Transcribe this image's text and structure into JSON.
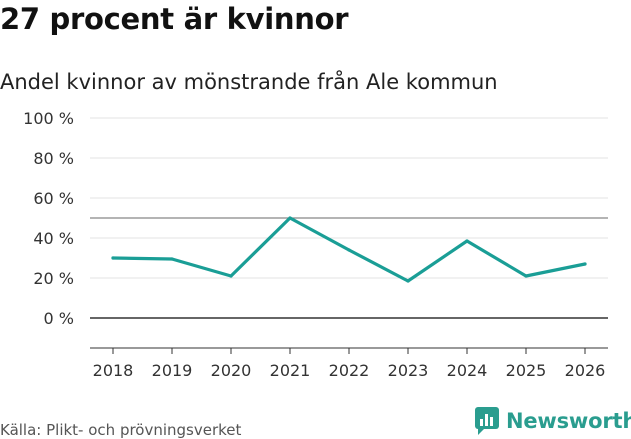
{
  "headline": "27 procent är kvinnor",
  "subtitle": "Andel kvinnor av mönstrande från Ale kommun",
  "source": "Källa: Plikt- och prövningsverket",
  "brand": {
    "name": "Newsworthy",
    "icon": "newsworthy-logo-icon",
    "color": "#2a9d8f"
  },
  "chart_data": {
    "type": "line",
    "title": "Andel kvinnor av mönstrande från Ale kommun",
    "xlabel": "",
    "ylabel": "",
    "x": [
      "2018",
      "2019",
      "2020",
      "2021",
      "2022",
      "2023",
      "2024",
      "2025",
      "2026"
    ],
    "series": [
      {
        "name": "Andel kvinnor",
        "values": [
          30,
          29.5,
          21,
          50,
          34,
          18.5,
          38.5,
          21,
          27
        ],
        "color": "#1a9e96"
      }
    ],
    "yticks": [
      0,
      20,
      40,
      60,
      80,
      100
    ],
    "ytick_labels": [
      "0 %",
      "20 %",
      "40 %",
      "60 %",
      "80 %",
      "100 %"
    ],
    "ylim": [
      -15,
      100
    ],
    "reference_line": 50,
    "grid": true
  }
}
